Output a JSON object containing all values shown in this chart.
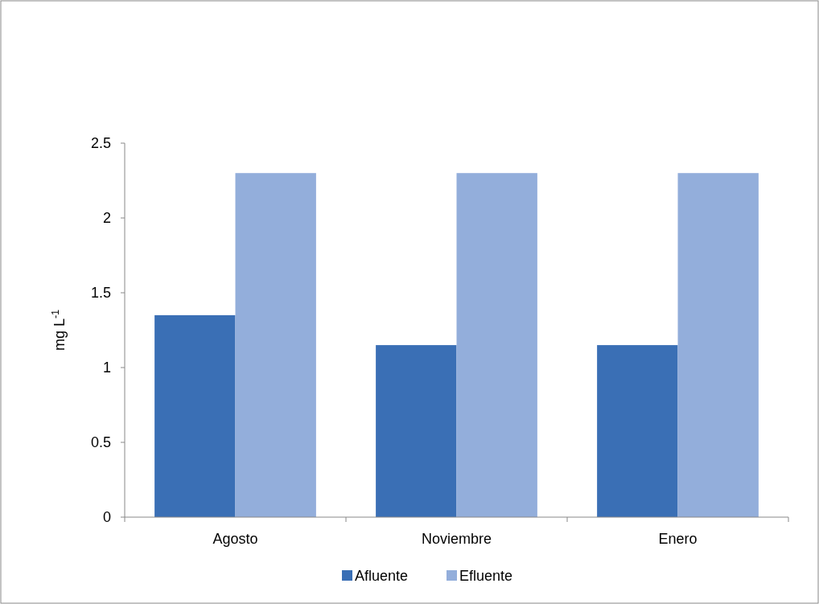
{
  "chart_data": {
    "type": "bar",
    "ylabel": "mg L$^{-1}$",
    "categories": [
      "Agosto",
      "Noviembre",
      "Enero"
    ],
    "series": [
      {
        "name": "Afluente",
        "color": "#3a6fb5",
        "values": [
          1.35,
          1.15,
          1.15
        ]
      },
      {
        "name": "Efluente",
        "color": "#93aedb",
        "values": [
          2.3,
          2.3,
          2.3
        ]
      }
    ],
    "ylim": [
      0,
      2.5
    ],
    "yticks": [
      0,
      0.5,
      1,
      1.5,
      2,
      2.5
    ],
    "grid": false,
    "legend": "bottom"
  }
}
